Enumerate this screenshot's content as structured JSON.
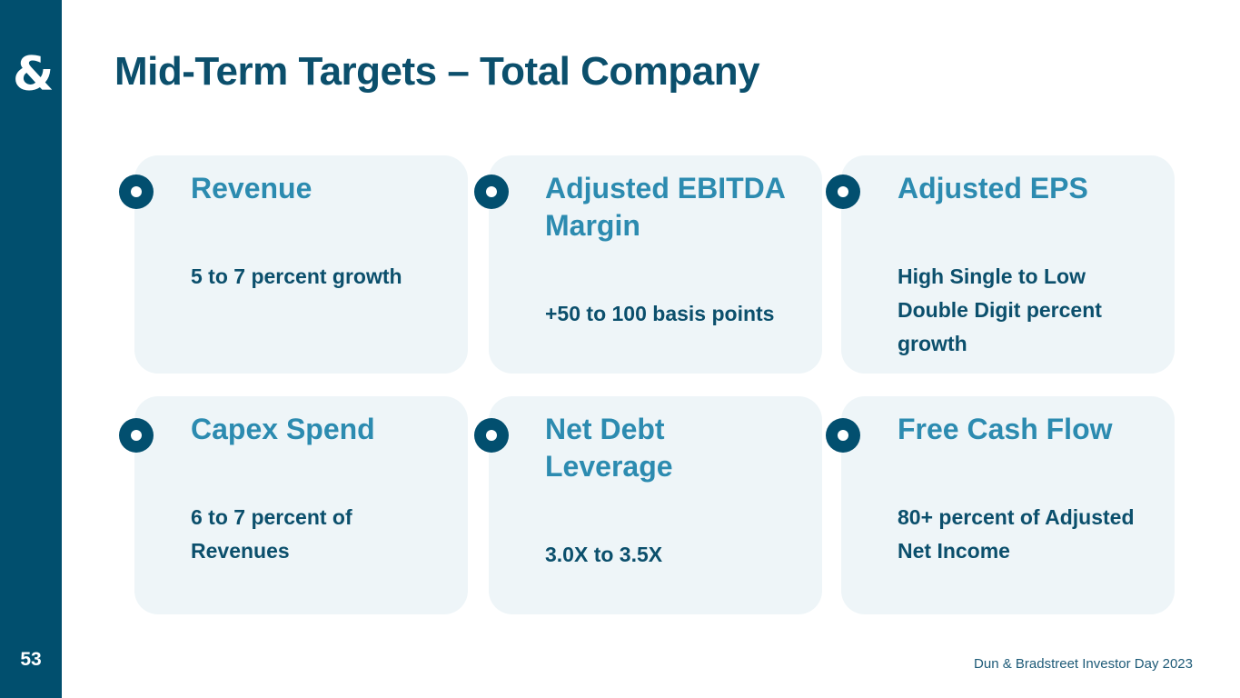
{
  "slide": {
    "title": "Mid-Term Targets – Total Company",
    "page_number": "53",
    "footer": "Dun & Bradstreet Investor Day 2023",
    "logo_glyph": "&"
  },
  "colors": {
    "sidebar": "#014f6e",
    "heading": "#2c8bb0",
    "body_text": "#0b4f6c",
    "card_bg": "#eef5f8"
  },
  "cards": [
    {
      "heading": "Revenue",
      "value": "5 to 7 percent growth"
    },
    {
      "heading": "Adjusted EBITDA Margin",
      "value": "+50 to 100 basis points"
    },
    {
      "heading": "Adjusted EPS",
      "value": "High Single to Low Double Digit percent growth"
    },
    {
      "heading": "Capex Spend",
      "value": "6 to 7 percent of Revenues"
    },
    {
      "heading": "Net Debt Leverage",
      "value": "3.0X to 3.5X"
    },
    {
      "heading": "Free Cash Flow",
      "value": "80+ percent of Adjusted Net Income"
    }
  ]
}
